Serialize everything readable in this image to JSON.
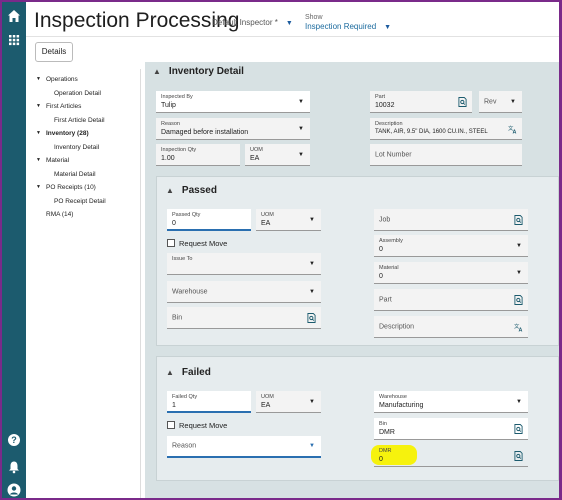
{
  "header": {
    "title": "Inspection Processing",
    "inspector": "Default Inspector *",
    "show_label": "Show",
    "show_value": "Inspection Required"
  },
  "toolbar": {
    "details_label": "Details"
  },
  "tree": {
    "operations": "Operations",
    "operation_detail": "Operation Detail",
    "first_articles": "First Articles",
    "first_article_detail": "First Article Detail",
    "inventory": "Inventory (28)",
    "inventory_detail": "Inventory Detail",
    "material": "Material",
    "material_detail": "Material Detail",
    "po_receipts": "PO Receipts (10)",
    "po_receipt_detail": "PO Receipt Detail",
    "rma": "RMA (14)"
  },
  "inventory": {
    "heading": "Inventory Detail",
    "inspected_by_label": "Inspected By",
    "inspected_by_value": "Tulip",
    "part_label": "Part",
    "part_value": "10032",
    "rev_label": "Rev",
    "reason_label": "Reason",
    "reason_value": "Damaged before installation",
    "description_label": "Description",
    "description_value": "TANK, AIR, 9.5\" DIA, 1600 CU.IN., STEEL",
    "qty_label": "Inspection Qty",
    "qty_value": "1.00",
    "uom_label": "UOM",
    "uom_value": "EA",
    "lot_label": "Lot Number"
  },
  "passed": {
    "heading": "Passed",
    "qty_label": "Passed Qty",
    "qty_value": "0",
    "uom_label": "UOM",
    "uom_value": "EA",
    "request_move": "Request Move",
    "issue_to_label": "Issue To",
    "warehouse_label": "Warehouse",
    "bin_label": "Bin",
    "job_label": "Job",
    "assembly_label": "Assembly",
    "assembly_value": "0",
    "material_label": "Material",
    "material_value": "0",
    "part_label": "Part",
    "description_label": "Description"
  },
  "failed": {
    "heading": "Failed",
    "qty_label": "Failed Qty",
    "qty_value": "1",
    "uom_label": "UOM",
    "uom_value": "EA",
    "request_move": "Request Move",
    "reason_label": "Reason",
    "warehouse_label": "Warehouse",
    "warehouse_value": "Manufacturing",
    "bin_label": "Bin",
    "bin_value": "DMR",
    "dmr_label": "DMR",
    "dmr_value": "0"
  },
  "colors": {
    "rail": "#1c5b6e",
    "accent": "#2a6fb0",
    "highlight": "#f7f200",
    "frame": "#7a2a8a"
  },
  "icons": [
    "home-icon",
    "apps-grid-icon",
    "help-icon",
    "bell-icon",
    "user-icon",
    "search-doc-icon",
    "translate-icon",
    "chevron-down-icon"
  ]
}
